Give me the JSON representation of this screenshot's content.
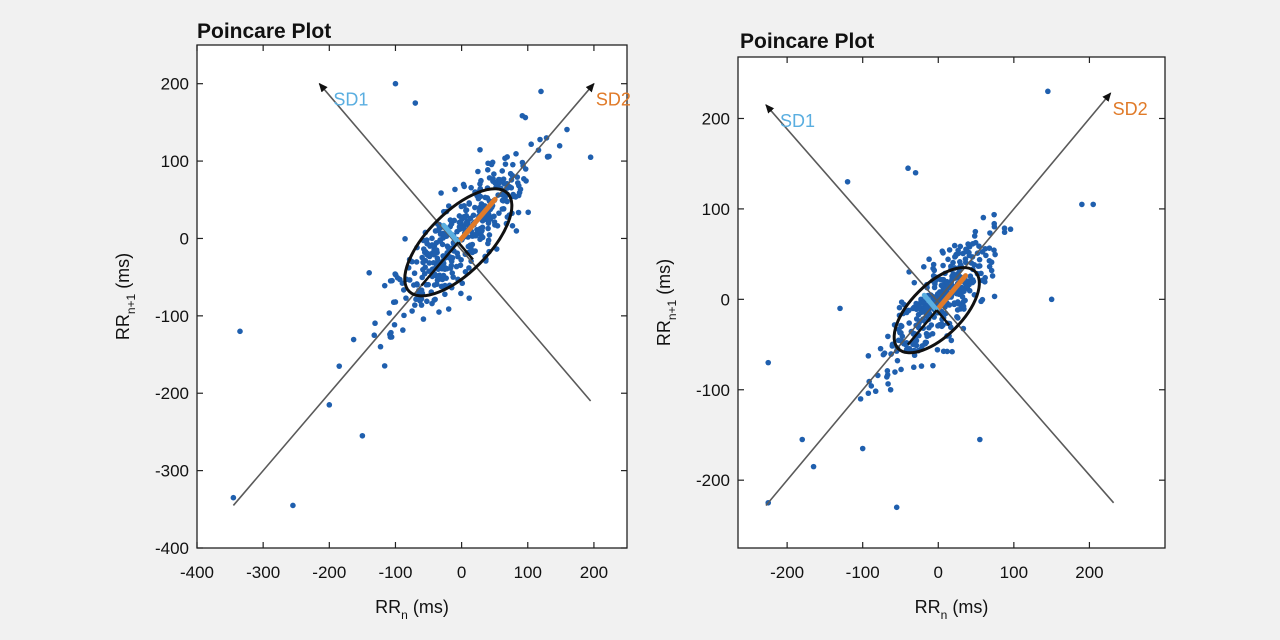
{
  "colors": {
    "points": "#1f5fae",
    "sd1": "#5aaee0",
    "sd2": "#e07a28",
    "lines": "#5a5a5a",
    "ellipse": "#111111"
  },
  "chart_data": [
    {
      "type": "scatter",
      "title": "Poincare Plot",
      "xlabel": "RR",
      "xlabel_sub": "n",
      "xlabel_unit": " (ms)",
      "ylabel": "RR",
      "ylabel_sub": "n+1",
      "ylabel_unit": " (ms)",
      "xlim": [
        -400,
        250
      ],
      "ylim": [
        -400,
        250
      ],
      "xticks": [
        -400,
        -300,
        -200,
        -100,
        0,
        100,
        200
      ],
      "xtick_labels": [
        "-400",
        "-300",
        "-200",
        "-100",
        "0",
        "100",
        "200"
      ],
      "yticks": [
        -400,
        -300,
        -200,
        -100,
        0,
        100,
        200
      ],
      "ytick_labels": [
        "-400",
        "-300",
        "-200",
        "-100",
        "0",
        "100",
        "200"
      ],
      "sd1_label": "SD1",
      "sd2_label": "SD2",
      "identity_line": {
        "from": [
          -345,
          -345
        ],
        "to": [
          200,
          200
        ]
      },
      "perpendicular_line": {
        "from": [
          -215,
          200
        ],
        "to": [
          195,
          -210
        ]
      },
      "ellipse": {
        "center": [
          -5,
          -5
        ],
        "sd1": 24,
        "sd2": 105
      },
      "outliers": [
        [
          -345,
          -335
        ],
        [
          -335,
          -120
        ],
        [
          -255,
          -345
        ],
        [
          -100,
          200
        ],
        [
          120,
          190
        ],
        [
          195,
          105
        ],
        [
          -150,
          -255
        ],
        [
          -200,
          -215
        ],
        [
          -185,
          -165
        ],
        [
          -70,
          175
        ]
      ],
      "cluster": {
        "seed": 11,
        "n": 400,
        "center": [
          0,
          5
        ],
        "major_sd": 75,
        "minor_sd": 22
      }
    },
    {
      "type": "scatter",
      "title": "Poincare Plot",
      "xlabel": "RR",
      "xlabel_sub": "n",
      "xlabel_unit": " (ms)",
      "ylabel": "RR",
      "ylabel_sub": "n+1",
      "ylabel_unit": " (ms)",
      "xlim": [
        -265,
        300
      ],
      "ylim": [
        -275,
        268
      ],
      "xticks": [
        -200,
        -100,
        0,
        100,
        200
      ],
      "xtick_labels": [
        "-200",
        "-100",
        "0",
        "100",
        "200"
      ],
      "yticks": [
        -200,
        -100,
        0,
        100,
        200
      ],
      "ytick_labels": [
        "-200",
        "-100",
        "0",
        "100",
        "200"
      ],
      "sd1_label": "SD1",
      "sd2_label": "SD2",
      "identity_line": {
        "from": [
          -228,
          -228
        ],
        "to": [
          228,
          228
        ]
      },
      "perpendicular_line": {
        "from": [
          -228,
          215
        ],
        "to": [
          232,
          -225
        ]
      },
      "ellipse": {
        "center": [
          -2,
          -12
        ],
        "sd1": 18,
        "sd2": 72
      },
      "outliers": [
        [
          -225,
          -225
        ],
        [
          -225,
          -70
        ],
        [
          -55,
          -230
        ],
        [
          145,
          230
        ],
        [
          -120,
          130
        ],
        [
          -40,
          145
        ],
        [
          -30,
          140
        ],
        [
          55,
          -155
        ],
        [
          150,
          0
        ],
        [
          190,
          105
        ],
        [
          205,
          105
        ],
        [
          -130,
          -10
        ],
        [
          -180,
          -155
        ],
        [
          -165,
          -185
        ],
        [
          -100,
          -165
        ]
      ],
      "cluster": {
        "seed": 23,
        "n": 340,
        "center": [
          0,
          -5
        ],
        "major_sd": 50,
        "minor_sd": 17
      }
    }
  ]
}
